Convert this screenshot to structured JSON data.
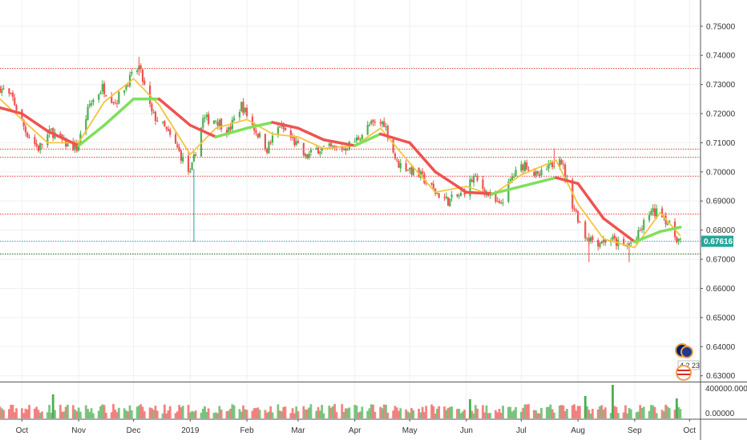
{
  "chart_data": {
    "type": "candlestick",
    "title": "",
    "xlabel": "",
    "ylabel": "",
    "ylim": [
      0.628,
      0.759
    ],
    "y_ticks": [
      "0.75000",
      "0.74000",
      "0.73000",
      "0.72000",
      "0.71000",
      "0.70000",
      "0.69000",
      "0.68000",
      "0.67000",
      "0.66000",
      "0.65000",
      "0.64000",
      "0.63000"
    ],
    "x_ticks": [
      {
        "label": "Oct",
        "date": "2018-10-01"
      },
      {
        "label": "Nov",
        "date": "2018-11-01"
      },
      {
        "label": "Dec",
        "date": "2018-12-01"
      },
      {
        "label": "2019",
        "date": "2019-01-01"
      },
      {
        "label": "Feb",
        "date": "2019-02-01"
      },
      {
        "label": "Mar",
        "date": "2019-03-01"
      },
      {
        "label": "Apr",
        "date": "2019-04-01"
      },
      {
        "label": "May",
        "date": "2019-05-01"
      },
      {
        "label": "Jun",
        "date": "2019-06-01"
      },
      {
        "label": "Jul",
        "date": "2019-07-01"
      },
      {
        "label": "Aug",
        "date": "2019-08-01"
      },
      {
        "label": "Sep",
        "date": "2019-09-01"
      },
      {
        "label": "Oct",
        "date": "2019-10-01"
      }
    ],
    "current_price": "0.67616",
    "horizontal_levels": [
      {
        "price": 0.7355,
        "color": "#e53935"
      },
      {
        "price": 0.7078,
        "color": "#e53935"
      },
      {
        "price": 0.705,
        "color": "#e53935"
      },
      {
        "price": 0.6985,
        "color": "#e53935"
      },
      {
        "price": 0.6855,
        "color": "#e53935"
      },
      {
        "price": 0.6762,
        "color": "#26a69a"
      },
      {
        "price": 0.6718,
        "color": "#1b5e20"
      }
    ],
    "close_path": [
      [
        "2018-09-19",
        0.729
      ],
      [
        "2018-09-26",
        0.725
      ],
      [
        "2018-10-03",
        0.714
      ],
      [
        "2018-10-10",
        0.708
      ],
      [
        "2018-10-17",
        0.714
      ],
      [
        "2018-10-24",
        0.71
      ],
      [
        "2018-10-31",
        0.708
      ],
      [
        "2018-11-07",
        0.723
      ],
      [
        "2018-11-14",
        0.729
      ],
      [
        "2018-11-21",
        0.724
      ],
      [
        "2018-11-28",
        0.731
      ],
      [
        "2018-12-04",
        0.736
      ],
      [
        "2018-12-11",
        0.72
      ],
      [
        "2018-12-18",
        0.715
      ],
      [
        "2018-12-25",
        0.708
      ],
      [
        "2019-01-01",
        0.699
      ],
      [
        "2019-01-08",
        0.718
      ],
      [
        "2019-01-15",
        0.718
      ],
      [
        "2019-01-22",
        0.714
      ],
      [
        "2019-01-29",
        0.723
      ],
      [
        "2019-02-05",
        0.715
      ],
      [
        "2019-02-12",
        0.708
      ],
      [
        "2019-02-19",
        0.716
      ],
      [
        "2019-02-26",
        0.711
      ],
      [
        "2019-03-05",
        0.705
      ],
      [
        "2019-03-12",
        0.708
      ],
      [
        "2019-03-19",
        0.708
      ],
      [
        "2019-03-26",
        0.708
      ],
      [
        "2019-04-02",
        0.711
      ],
      [
        "2019-04-09",
        0.716
      ],
      [
        "2019-04-17",
        0.717
      ],
      [
        "2019-04-24",
        0.703
      ],
      [
        "2019-05-01",
        0.701
      ],
      [
        "2019-05-08",
        0.698
      ],
      [
        "2019-05-15",
        0.693
      ],
      [
        "2019-05-22",
        0.69
      ],
      [
        "2019-05-29",
        0.692
      ],
      [
        "2019-06-05",
        0.698
      ],
      [
        "2019-06-12",
        0.693
      ],
      [
        "2019-06-19",
        0.688
      ],
      [
        "2019-06-26",
        0.698
      ],
      [
        "2019-07-03",
        0.703
      ],
      [
        "2019-07-10",
        0.698
      ],
      [
        "2019-07-17",
        0.702
      ],
      [
        "2019-07-22",
        0.706
      ],
      [
        "2019-07-29",
        0.689
      ],
      [
        "2019-08-05",
        0.678
      ],
      [
        "2019-08-12",
        0.676
      ],
      [
        "2019-08-19",
        0.677
      ],
      [
        "2019-08-26",
        0.674
      ],
      [
        "2019-09-02",
        0.677
      ],
      [
        "2019-09-09",
        0.686
      ],
      [
        "2019-09-16",
        0.686
      ],
      [
        "2019-09-23",
        0.678
      ],
      [
        "2019-09-26",
        0.6762
      ]
    ],
    "wick_extremes": [
      {
        "date": "2018-12-04",
        "high": 0.7395,
        "low": 0.733
      },
      {
        "date": "2019-01-03",
        "high": 0.701,
        "low": 0.676
      },
      {
        "date": "2019-07-19",
        "high": 0.708,
        "low": 0.702
      },
      {
        "date": "2019-08-07",
        "high": 0.679,
        "low": 0.669
      },
      {
        "date": "2019-08-29",
        "high": 0.676,
        "low": 0.669
      },
      {
        "date": "2019-09-12",
        "high": 0.689,
        "low": 0.684
      }
    ],
    "series": [
      {
        "color": "#ef5350",
        "role": "slow-ma",
        "points": [
          [
            "2018-09-19",
            0.722
          ],
          [
            "2018-10-01",
            0.72
          ],
          [
            "2018-10-15",
            0.714
          ],
          [
            "2018-11-01",
            0.709
          ],
          [
            "2018-11-15",
            0.716
          ],
          [
            "2018-12-01",
            0.725
          ],
          [
            "2018-12-15",
            0.725
          ],
          [
            "2019-01-01",
            0.716
          ],
          [
            "2019-01-15",
            0.712
          ],
          [
            "2019-02-01",
            0.715
          ],
          [
            "2019-02-15",
            0.717
          ],
          [
            "2019-03-01",
            0.715
          ],
          [
            "2019-03-15",
            0.711
          ],
          [
            "2019-04-01",
            0.709
          ],
          [
            "2019-04-15",
            0.713
          ],
          [
            "2019-05-01",
            0.71
          ],
          [
            "2019-05-15",
            0.7
          ],
          [
            "2019-06-01",
            0.693
          ],
          [
            "2019-06-15",
            0.6925
          ],
          [
            "2019-07-01",
            0.695
          ],
          [
            "2019-07-20",
            0.698
          ],
          [
            "2019-08-01",
            0.696
          ],
          [
            "2019-08-15",
            0.684
          ],
          [
            "2019-09-01",
            0.676
          ],
          [
            "2019-09-15",
            0.6795
          ],
          [
            "2019-09-26",
            0.681
          ]
        ]
      },
      {
        "color": "#f6c33c",
        "role": "fast-ma",
        "points": [
          [
            "2018-09-19",
            0.725
          ],
          [
            "2018-10-01",
            0.718
          ],
          [
            "2018-10-15",
            0.71
          ],
          [
            "2018-11-01",
            0.71
          ],
          [
            "2018-11-15",
            0.724
          ],
          [
            "2018-12-01",
            0.732
          ],
          [
            "2018-12-15",
            0.723
          ],
          [
            "2019-01-01",
            0.706
          ],
          [
            "2019-01-15",
            0.715
          ],
          [
            "2019-02-01",
            0.718
          ],
          [
            "2019-02-15",
            0.713
          ],
          [
            "2019-03-01",
            0.712
          ],
          [
            "2019-03-15",
            0.708
          ],
          [
            "2019-04-01",
            0.709
          ],
          [
            "2019-04-15",
            0.715
          ],
          [
            "2019-05-01",
            0.703
          ],
          [
            "2019-05-15",
            0.693
          ],
          [
            "2019-06-01",
            0.695
          ],
          [
            "2019-06-15",
            0.692
          ],
          [
            "2019-07-01",
            0.699
          ],
          [
            "2019-07-20",
            0.704
          ],
          [
            "2019-08-01",
            0.689
          ],
          [
            "2019-08-15",
            0.677
          ],
          [
            "2019-09-01",
            0.674
          ],
          [
            "2019-09-15",
            0.686
          ],
          [
            "2019-09-26",
            0.678
          ]
        ]
      }
    ],
    "volume": {
      "ylim": [
        0,
        500000
      ],
      "y_ticks": [
        "400000.00000",
        "0.00000"
      ]
    },
    "legend": "none"
  },
  "icons": [
    "flag-icon-au",
    "flag-icon-us"
  ],
  "event_badge": {
    "label": "4 2 23"
  }
}
